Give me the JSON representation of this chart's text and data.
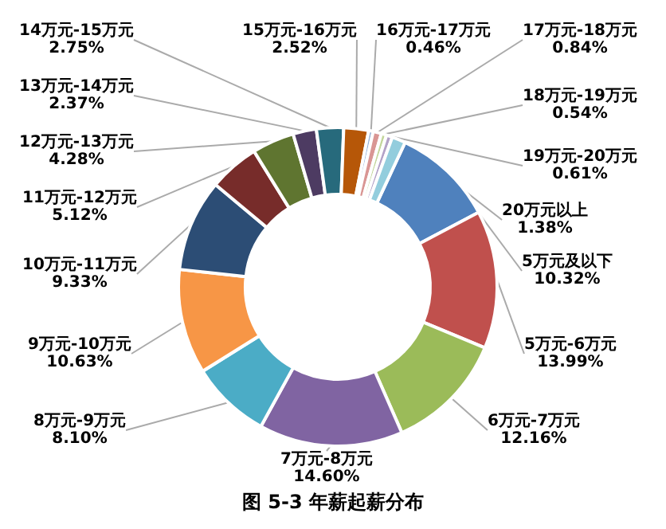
{
  "chart_data": {
    "type": "donut",
    "title": "图 5-3 年薪起薪分布",
    "categories": [
      "5万元及以下",
      "5万元-6万元",
      "6万元-7万元",
      "7万元-8万元",
      "8万元-9万元",
      "9万元-10万元",
      "10万元-11万元",
      "11万元-12万元",
      "12万元-13万元",
      "13万元-14万元",
      "14万元-15万元",
      "15万元-16万元",
      "16万元-17万元",
      "17万元-18万元",
      "18万元-19万元",
      "19万元-20万元",
      "20万元以上"
    ],
    "values": [
      10.32,
      13.99,
      12.16,
      14.6,
      8.1,
      10.63,
      9.33,
      5.12,
      4.28,
      2.37,
      2.75,
      2.52,
      0.46,
      0.84,
      0.54,
      0.61,
      1.38
    ],
    "value_labels": [
      "10.32%",
      "13.99%",
      "12.16%",
      "14.60%",
      "8.10%",
      "10.63%",
      "9.33%",
      "5.12%",
      "4.28%",
      "2.37%",
      "2.75%",
      "2.52%",
      "0.46%",
      "0.84%",
      "0.54%",
      "0.61%",
      "1.38%"
    ],
    "colors": [
      "#4f81bd",
      "#c0504d",
      "#9bbb59",
      "#8064a2",
      "#4bacc6",
      "#f79646",
      "#2c4d75",
      "#772c2a",
      "#5f7530",
      "#4d3b62",
      "#276a7c",
      "#b65708",
      "#95b3d7",
      "#d99694",
      "#c3d69b",
      "#b3a2c7",
      "#93cddd"
    ],
    "legend": false
  }
}
